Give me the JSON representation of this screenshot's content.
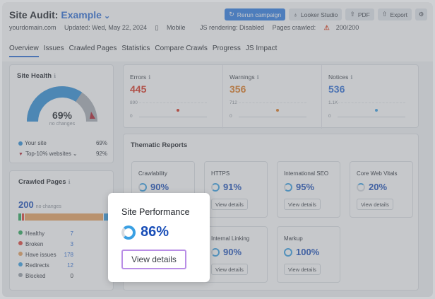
{
  "header": {
    "title_prefix": "Site Audit:",
    "project": "Example",
    "domain": "yourdomain.com",
    "updated": "Updated: Wed, May 22, 2024",
    "device": "Mobile",
    "js_rendering": "JS rendering: Disabled",
    "pages_crawled_label": "Pages crawled:",
    "pages_crawled_value": "200/200"
  },
  "toolbar": {
    "rerun": "Rerun campaign",
    "looker": "Looker Studio",
    "pdf": "PDF",
    "export": "Export"
  },
  "tabs": [
    "Overview",
    "Issues",
    "Crawled Pages",
    "Statistics",
    "Compare Crawls",
    "Progress",
    "JS Impact"
  ],
  "site_health": {
    "title": "Site Health",
    "value": "69%",
    "value_fraction": 0.69,
    "subtitle": "no changes",
    "your_site_label": "Your site",
    "your_site_value": "69%",
    "top_label": "Top-10% websites",
    "top_value": "92%"
  },
  "crawled_pages": {
    "title": "Crawled Pages",
    "count": "200",
    "count_note": "no changes",
    "rows": [
      {
        "label": "Healthy",
        "value": "7",
        "color": "#2eaa5c"
      },
      {
        "label": "Broken",
        "value": "3",
        "color": "#e0443a"
      },
      {
        "label": "Have issues",
        "value": "178",
        "color": "#e9a25f"
      },
      {
        "label": "Redirects",
        "value": "12",
        "color": "#3aa0e3"
      },
      {
        "label": "Blocked",
        "value": "0",
        "color": "#9aa0a8"
      }
    ]
  },
  "metrics": [
    {
      "label": "Errors",
      "value": "445",
      "color": "#d9331f",
      "top": "890",
      "bottom": "0"
    },
    {
      "label": "Warnings",
      "value": "356",
      "color": "#e07a1f",
      "top": "712",
      "bottom": "0"
    },
    {
      "label": "Notices",
      "value": "536",
      "color": "#2f6fd6",
      "top": "1.1K",
      "bottom": "0"
    }
  ],
  "thematic": {
    "title": "Thematic Reports",
    "view_details": "View details",
    "reports": [
      {
        "label": "Crawlability",
        "value": "90%"
      },
      {
        "label": "HTTPS",
        "value": "91%"
      },
      {
        "label": "International SEO",
        "value": "95%"
      },
      {
        "label": "Core Web Vitals",
        "value": "20%"
      },
      {
        "label": "Internal Linking",
        "value": "90%"
      },
      {
        "label": "Markup",
        "value": "100%"
      }
    ]
  },
  "popup": {
    "title": "Site Performance",
    "value": "86%",
    "button": "View details"
  },
  "colors": {
    "accent": "#2f6fd6",
    "highlight_border": "#b98ee6"
  }
}
